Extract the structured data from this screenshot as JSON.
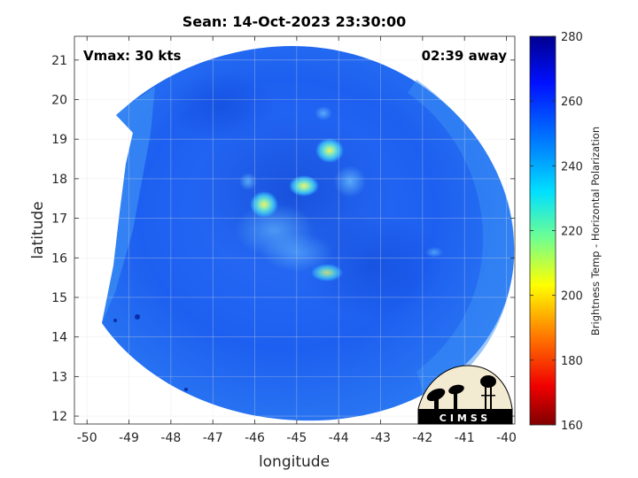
{
  "title": "Sean: 14-Oct-2023 23:30:00",
  "annotations": {
    "vmax": "Vmax: 30 kts",
    "time_away": "02:39 away"
  },
  "axes": {
    "xlabel": "longitude",
    "ylabel": "latitude",
    "x_ticks": [
      "-50",
      "-49",
      "-48",
      "-47",
      "-46",
      "-45",
      "-44",
      "-43",
      "-42",
      "-41",
      "-40"
    ],
    "y_ticks": [
      "12",
      "13",
      "14",
      "15",
      "16",
      "17",
      "18",
      "19",
      "20",
      "21"
    ],
    "xlim": [
      -50.3,
      -39.8
    ],
    "ylim": [
      11.8,
      21.6
    ]
  },
  "colorbar": {
    "label": "Brightness Temp - Horizontal Polarization",
    "ticks": [
      "280",
      "260",
      "240",
      "220",
      "200",
      "180",
      "160"
    ],
    "range": [
      160,
      280
    ]
  },
  "logo": {
    "text": "CIMSS"
  },
  "colors": {
    "background_scene": "#1f5ff0",
    "swath_edge": "#3fa0f5"
  }
}
